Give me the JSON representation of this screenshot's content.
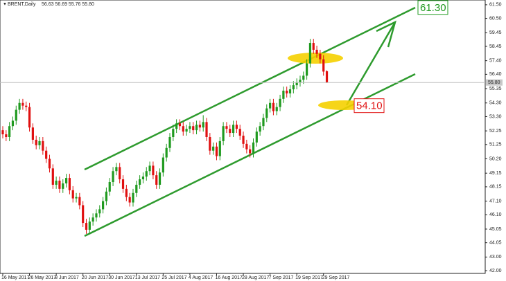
{
  "chart_data": {
    "type": "candlestick",
    "title": "BRENT,Daily",
    "subtitle": "56.63 56.69 55.76 55.80",
    "up_color": "#1f9a1f",
    "down_color": "#e01010",
    "categories": [
      "16 May 2017",
      null,
      null,
      null,
      null,
      null,
      null,
      null,
      "26 May 2017",
      null,
      null,
      null,
      null,
      null,
      null,
      null,
      "8 Jun 2017",
      null,
      null,
      null,
      null,
      null,
      null,
      null,
      "20 Jun 2017",
      null,
      null,
      null,
      null,
      null,
      null,
      null,
      "30 Jun 2017",
      null,
      null,
      null,
      null,
      null,
      null,
      null,
      "13 Jul 2017",
      null,
      null,
      null,
      null,
      null,
      null,
      null,
      "25 Jul 2017",
      null,
      null,
      null,
      null,
      null,
      null,
      null,
      "4 Aug 2017",
      null,
      null,
      null,
      null,
      null,
      null,
      null,
      "16 Aug 2017",
      null,
      null,
      null,
      null,
      null,
      null,
      null,
      "28 Aug 2017",
      null,
      null,
      null,
      null,
      null,
      null,
      null,
      "7 Sep 2017",
      null,
      null,
      null,
      null,
      null,
      null,
      null,
      "19 Sep 2017",
      null,
      null,
      null,
      null,
      null,
      null,
      null,
      "29 Sep 2017",
      null
    ],
    "open": [
      52.3,
      52.0,
      51.8,
      52.6,
      53.0,
      53.8,
      54.3,
      54.1,
      54.0,
      52.5,
      51.6,
      51.2,
      51.5,
      50.8,
      50.2,
      49.5,
      48.3,
      48.6,
      48.0,
      48.4,
      48.8,
      47.9,
      47.3,
      47.4,
      46.8,
      45.5,
      45.0,
      45.6,
      45.9,
      46.2,
      46.5,
      47.1,
      47.8,
      48.5,
      49.3,
      49.6,
      48.7,
      48.0,
      47.4,
      47.0,
      47.7,
      48.3,
      48.7,
      48.9,
      49.3,
      49.7,
      49.0,
      48.3,
      49.2,
      50.3,
      51.0,
      51.8,
      52.4,
      52.8,
      52.6,
      52.2,
      52.4,
      52.6,
      52.3,
      52.7,
      52.5,
      52.9,
      51.8,
      50.8,
      51.1,
      50.4,
      51.5,
      52.6,
      52.4,
      52.1,
      52.7,
      52.4,
      51.9,
      51.3,
      50.9,
      50.6,
      51.4,
      52.2,
      52.6,
      53.2,
      53.9,
      54.3,
      53.7,
      54.0,
      54.6,
      55.2,
      55.0,
      55.3,
      55.6,
      55.8,
      56.0,
      56.3,
      57.2,
      58.7,
      58.2,
      57.9,
      57.5,
      56.63
    ],
    "high": [
      52.6,
      52.3,
      52.9,
      53.3,
      54.1,
      54.6,
      54.6,
      54.4,
      54.3,
      52.8,
      51.9,
      51.8,
      51.8,
      51.1,
      50.5,
      49.8,
      48.9,
      48.9,
      48.7,
      49.1,
      49.1,
      48.2,
      47.7,
      47.7,
      47.1,
      45.8,
      45.9,
      46.2,
      46.5,
      46.8,
      47.4,
      48.1,
      48.8,
      49.6,
      49.9,
      49.9,
      49.0,
      48.3,
      47.7,
      48.0,
      48.6,
      49.0,
      49.2,
      49.6,
      50.0,
      50.0,
      49.3,
      49.5,
      50.6,
      51.3,
      52.1,
      52.7,
      53.1,
      53.1,
      52.9,
      52.7,
      52.9,
      52.9,
      53.0,
      53.0,
      53.4,
      53.2,
      52.1,
      51.4,
      51.4,
      51.8,
      52.9,
      52.9,
      52.7,
      53.0,
      53.0,
      52.7,
      52.2,
      51.6,
      51.2,
      51.7,
      52.5,
      52.9,
      53.5,
      54.2,
      54.6,
      54.6,
      54.3,
      54.9,
      55.5,
      55.5,
      55.6,
      55.9,
      56.1,
      56.3,
      56.6,
      57.5,
      59.0,
      59.0,
      58.5,
      58.2,
      57.8,
      56.69
    ],
    "low": [
      51.7,
      51.5,
      51.5,
      52.3,
      52.7,
      53.5,
      53.8,
      53.7,
      52.2,
      51.3,
      50.9,
      50.9,
      50.5,
      49.9,
      49.2,
      48.0,
      48.0,
      47.7,
      47.7,
      48.1,
      47.6,
      47.0,
      47.0,
      46.5,
      45.2,
      44.7,
      44.7,
      45.3,
      45.6,
      45.9,
      46.2,
      46.8,
      47.5,
      48.2,
      49.0,
      48.4,
      47.7,
      47.1,
      46.7,
      46.7,
      47.4,
      48.0,
      48.4,
      48.6,
      49.0,
      48.7,
      48.0,
      48.0,
      48.9,
      50.0,
      50.7,
      51.5,
      52.1,
      52.3,
      51.9,
      51.9,
      52.1,
      52.0,
      52.0,
      52.2,
      52.2,
      51.5,
      50.5,
      50.5,
      50.1,
      50.1,
      51.2,
      52.1,
      51.8,
      51.8,
      52.1,
      51.6,
      51.0,
      50.6,
      50.3,
      50.3,
      51.1,
      51.9,
      52.3,
      52.9,
      53.6,
      53.4,
      53.4,
      53.7,
      54.3,
      54.7,
      54.7,
      55.0,
      55.3,
      55.5,
      55.7,
      56.0,
      56.9,
      57.9,
      57.6,
      57.2,
      56.3,
      55.76
    ],
    "close": [
      52.0,
      51.8,
      52.6,
      53.0,
      53.8,
      54.3,
      54.1,
      54.0,
      52.5,
      51.6,
      51.2,
      51.5,
      50.8,
      50.2,
      49.5,
      48.3,
      48.6,
      48.0,
      48.4,
      48.8,
      47.9,
      47.3,
      47.4,
      46.8,
      45.5,
      45.0,
      45.6,
      45.9,
      46.2,
      46.5,
      47.1,
      47.8,
      48.5,
      49.3,
      49.6,
      48.7,
      48.0,
      47.4,
      47.0,
      47.7,
      48.3,
      48.7,
      48.9,
      49.3,
      49.7,
      49.0,
      48.3,
      49.2,
      50.3,
      51.0,
      51.8,
      52.4,
      52.8,
      52.6,
      52.2,
      52.4,
      52.6,
      52.3,
      52.7,
      52.5,
      52.9,
      51.8,
      50.8,
      51.1,
      50.4,
      51.5,
      52.6,
      52.4,
      52.1,
      52.7,
      52.4,
      51.9,
      51.3,
      50.9,
      50.6,
      51.4,
      52.2,
      52.6,
      53.2,
      53.9,
      54.3,
      53.7,
      54.0,
      54.6,
      55.2,
      55.0,
      55.3,
      55.6,
      55.8,
      56.0,
      56.3,
      57.2,
      58.7,
      58.2,
      57.9,
      57.5,
      56.6,
      55.8
    ],
    "ylim": [
      41.8,
      61.85
    ],
    "yticks": [
      {
        "value": 61.5,
        "label": "61.50"
      },
      {
        "value": 60.5,
        "label": "60.50"
      },
      59.45,
      58.45,
      {
        "value": 57.4,
        "label": "57.40"
      },
      {
        "value": 56.4,
        "label": "56.40"
      },
      55.35,
      {
        "value": 54.3,
        "label": "54.30"
      },
      {
        "value": 53.3,
        "label": "53.30"
      },
      52.25,
      51.25,
      {
        "value": 50.2,
        "label": "50.20"
      },
      49.15,
      48.15,
      {
        "value": 47.1,
        "label": "47.10"
      },
      {
        "value": 46.1,
        "label": "46.10"
      },
      45.05,
      44.05,
      {
        "value": 43,
        "label": "43.00"
      },
      {
        "value": 42,
        "label": "42.00"
      }
    ],
    "current_price": {
      "value": 55.8,
      "label": "55.80"
    },
    "annotations": [
      {
        "value": 61.3,
        "label": "61.30",
        "color": "#1f9a1f"
      },
      {
        "value": 54.1,
        "label": "54.10",
        "color": "#e01010"
      }
    ]
  }
}
